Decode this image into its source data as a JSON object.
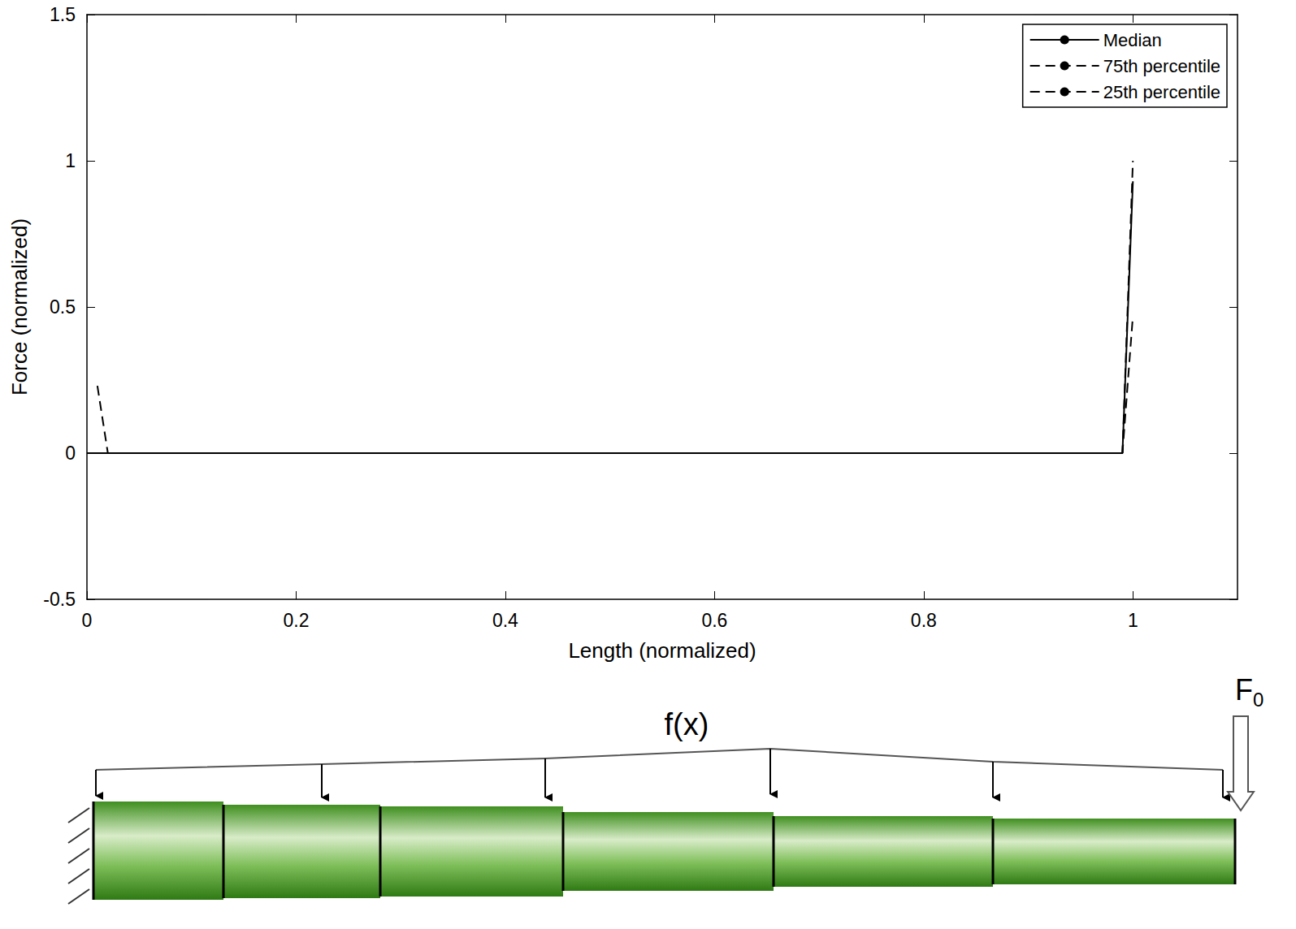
{
  "chart_data": {
    "type": "line",
    "xlabel": "Length (normalized)",
    "ylabel": "Force (normalized)",
    "x": [
      0,
      0.01,
      0.02,
      0.99,
      1.0
    ],
    "series": [
      {
        "name": "Median",
        "color": "#000000",
        "line_style": "solid",
        "values": [
          0,
          0,
          0,
          0,
          0.93
        ]
      },
      {
        "name": "75th percentile",
        "color": "#000000",
        "line_style": "dashed",
        "values": [
          null,
          0.23,
          0,
          0,
          1.0
        ]
      },
      {
        "name": "25th percentile",
        "color": "#000000",
        "line_style": "dashed",
        "values": [
          0,
          0,
          0,
          0,
          0.47
        ]
      }
    ],
    "xlim": [
      0,
      1.1
    ],
    "xticks": [
      0,
      0.2,
      0.4,
      0.6,
      0.8,
      1
    ],
    "ylim": [
      -0.5,
      1.5
    ],
    "yticks": [
      -0.5,
      0,
      0.5,
      1,
      1.5
    ],
    "grid": false,
    "legend": "upper right"
  },
  "diagram": {
    "load_label": "f(x)",
    "force_label": "F",
    "force_subscript": "0"
  }
}
